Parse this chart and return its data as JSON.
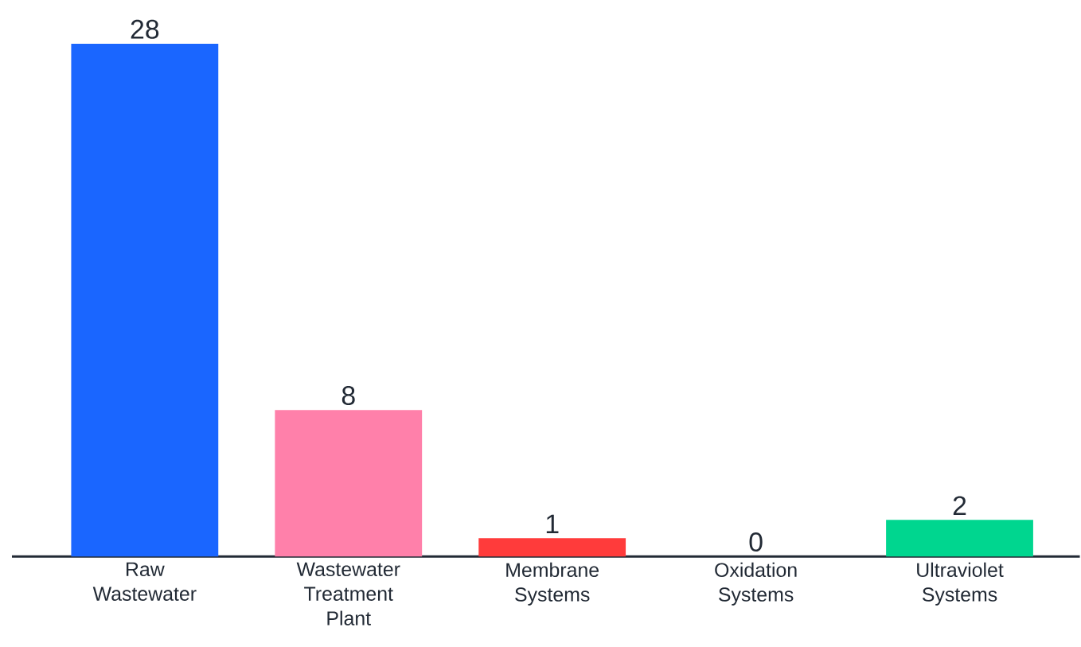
{
  "chart_data": {
    "type": "bar",
    "categories": [
      "Raw Wastewater",
      "Wastewater Treatment Plant",
      "Membrane Systems",
      "Oxidation Systems",
      "Ultraviolet Systems"
    ],
    "values": [
      28,
      8,
      1,
      0,
      2
    ],
    "colors": [
      "#1a66ff",
      "#ff80aa",
      "#ff3b3b",
      "#00d68f",
      "#00d68f"
    ],
    "data_labels": true
  }
}
